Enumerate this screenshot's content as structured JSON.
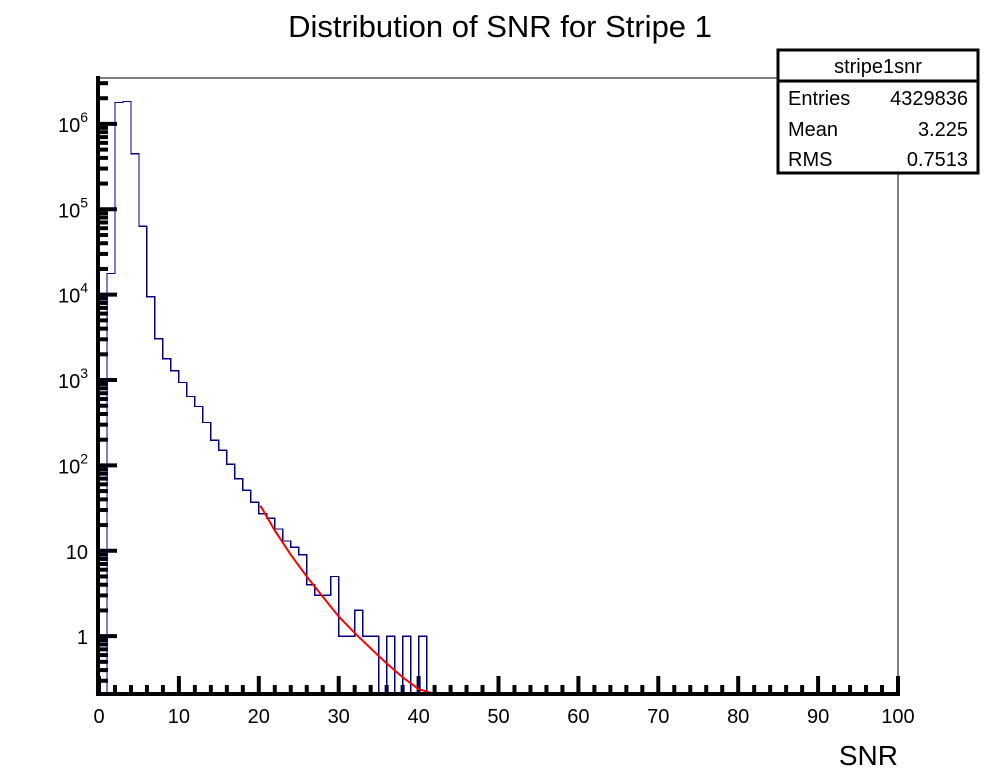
{
  "chart_data": {
    "type": "bar",
    "histogram_name": "stripe1snr",
    "title": "Distribution of SNR for Stripe 1",
    "xlabel": "SNR",
    "ylabel": "",
    "xlim": [
      0,
      100
    ],
    "ylim": [
      0.21,
      3450000
    ],
    "yscale": "log",
    "grid": false,
    "line_color": "#000080",
    "fit_color": "#ff0000",
    "bin_width": 1,
    "x_ticks": [
      0,
      10,
      20,
      30,
      40,
      50,
      60,
      70,
      80,
      90,
      100
    ],
    "x_tick_labels": [
      "0",
      "10",
      "20",
      "30",
      "40",
      "50",
      "60",
      "70",
      "80",
      "90",
      "100"
    ],
    "y_ticks": [
      {
        "value": 1,
        "base": "1",
        "exp": ""
      },
      {
        "value": 10,
        "base": "10",
        "exp": ""
      },
      {
        "value": 100,
        "base": "10",
        "exp": "2"
      },
      {
        "value": 1000,
        "base": "10",
        "exp": "3"
      },
      {
        "value": 10000,
        "base": "10",
        "exp": "4"
      },
      {
        "value": 100000,
        "base": "10",
        "exp": "5"
      },
      {
        "value": 1000000,
        "base": "10",
        "exp": "6"
      }
    ],
    "bins_low_edge": [
      0,
      1,
      2,
      3,
      4,
      5,
      6,
      7,
      8,
      9,
      10,
      11,
      12,
      13,
      14,
      15,
      16,
      17,
      18,
      19,
      20,
      21,
      22,
      23,
      24,
      25,
      26,
      27,
      28,
      29,
      30,
      31,
      32,
      33,
      34,
      35,
      36,
      37,
      38,
      39,
      40
    ],
    "counts": [
      0,
      17700,
      1780000,
      1830000,
      446000,
      63000,
      9480,
      3060,
      1780,
      1290,
      935,
      641,
      490,
      318,
      196,
      150,
      103,
      70,
      51,
      37,
      27,
      24,
      18,
      13,
      11,
      9,
      4,
      3,
      3,
      5,
      1,
      1,
      2,
      1,
      1,
      0,
      1,
      0,
      1,
      0,
      1
    ],
    "fit": {
      "label": "fit",
      "x": [
        20.2,
        22,
        24,
        26,
        28,
        30,
        32,
        34,
        36,
        38,
        40,
        42,
        42.5
      ],
      "y": [
        33.7,
        17.3,
        9.0,
        5.0,
        2.9,
        1.7,
        1.09,
        0.72,
        0.48,
        0.33,
        0.24,
        0.17,
        0.16
      ]
    },
    "stats_box": {
      "title": "stripe1snr",
      "rows": [
        {
          "label": "Entries",
          "value": "4329836"
        },
        {
          "label": "Mean",
          "value": "3.225"
        },
        {
          "label": "RMS",
          "value": "0.7513"
        }
      ],
      "position": "top-right"
    }
  }
}
